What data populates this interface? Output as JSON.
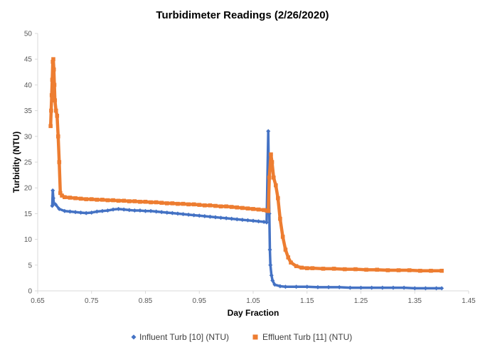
{
  "chart_data": {
    "type": "scatter",
    "title": "Turbidimeter Readings (2/26/2020)",
    "xlabel": "Day Fraction",
    "ylabel": "Turbidity (NTU)",
    "xlim": [
      0.65,
      1.45
    ],
    "ylim": [
      0,
      50
    ],
    "x_ticks": [
      "0.65",
      "0.75",
      "0.85",
      "0.95",
      "1.05",
      "1.15",
      "1.25",
      "1.35",
      "1.45"
    ],
    "y_ticks": [
      "0",
      "5",
      "10",
      "15",
      "20",
      "25",
      "30",
      "35",
      "40",
      "45",
      "50"
    ],
    "grid": false,
    "legend_position": "bottom",
    "series": [
      {
        "name": "Influent Turb [10] (NTU)",
        "marker": "diamond",
        "color": "#4472C4",
        "points": [
          [
            0.677,
            16.5
          ],
          [
            0.678,
            19.5
          ],
          [
            0.679,
            18.0
          ],
          [
            0.68,
            17.0
          ],
          [
            0.683,
            16.8
          ],
          [
            0.69,
            15.9
          ],
          [
            0.7,
            15.5
          ],
          [
            0.71,
            15.4
          ],
          [
            0.72,
            15.3
          ],
          [
            0.73,
            15.2
          ],
          [
            0.74,
            15.1
          ],
          [
            0.75,
            15.2
          ],
          [
            0.76,
            15.4
          ],
          [
            0.77,
            15.5
          ],
          [
            0.78,
            15.6
          ],
          [
            0.79,
            15.8
          ],
          [
            0.8,
            15.9
          ],
          [
            0.81,
            15.8
          ],
          [
            0.82,
            15.7
          ],
          [
            0.83,
            15.6
          ],
          [
            0.84,
            15.6
          ],
          [
            0.85,
            15.5
          ],
          [
            0.86,
            15.5
          ],
          [
            0.87,
            15.4
          ],
          [
            0.88,
            15.3
          ],
          [
            0.89,
            15.2
          ],
          [
            0.9,
            15.1
          ],
          [
            0.91,
            15.0
          ],
          [
            0.92,
            14.9
          ],
          [
            0.93,
            14.8
          ],
          [
            0.94,
            14.7
          ],
          [
            0.95,
            14.6
          ],
          [
            0.96,
            14.5
          ],
          [
            0.97,
            14.4
          ],
          [
            0.98,
            14.3
          ],
          [
            0.99,
            14.2
          ],
          [
            1.0,
            14.1
          ],
          [
            1.01,
            14.0
          ],
          [
            1.02,
            13.9
          ],
          [
            1.03,
            13.8
          ],
          [
            1.04,
            13.7
          ],
          [
            1.05,
            13.6
          ],
          [
            1.06,
            13.5
          ],
          [
            1.07,
            13.4
          ],
          [
            1.075,
            13.3
          ],
          [
            1.078,
            31.0
          ],
          [
            1.079,
            23.0
          ],
          [
            1.08,
            15.0
          ],
          [
            1.081,
            8.0
          ],
          [
            1.082,
            5.0
          ],
          [
            1.084,
            3.0
          ],
          [
            1.086,
            2.0
          ],
          [
            1.09,
            1.2
          ],
          [
            1.1,
            0.9
          ],
          [
            1.11,
            0.8
          ],
          [
            1.13,
            0.8
          ],
          [
            1.15,
            0.8
          ],
          [
            1.17,
            0.7
          ],
          [
            1.19,
            0.7
          ],
          [
            1.21,
            0.7
          ],
          [
            1.23,
            0.6
          ],
          [
            1.25,
            0.6
          ],
          [
            1.27,
            0.6
          ],
          [
            1.29,
            0.6
          ],
          [
            1.31,
            0.6
          ],
          [
            1.33,
            0.6
          ],
          [
            1.35,
            0.5
          ],
          [
            1.37,
            0.5
          ],
          [
            1.39,
            0.5
          ],
          [
            1.4,
            0.5
          ]
        ]
      },
      {
        "name": "Effluent Turb [11] (NTU)",
        "marker": "square",
        "color": "#ED7D31",
        "points": [
          [
            0.674,
            32.0
          ],
          [
            0.675,
            35.0
          ],
          [
            0.676,
            38.0
          ],
          [
            0.677,
            41.0
          ],
          [
            0.678,
            44.5
          ],
          [
            0.679,
            45.0
          ],
          [
            0.68,
            43.0
          ],
          [
            0.681,
            40.0
          ],
          [
            0.682,
            37.0
          ],
          [
            0.684,
            35.0
          ],
          [
            0.686,
            34.0
          ],
          [
            0.688,
            30.0
          ],
          [
            0.69,
            25.0
          ],
          [
            0.692,
            19.0
          ],
          [
            0.695,
            18.5
          ],
          [
            0.7,
            18.2
          ],
          [
            0.71,
            18.1
          ],
          [
            0.72,
            18.0
          ],
          [
            0.73,
            17.9
          ],
          [
            0.74,
            17.8
          ],
          [
            0.75,
            17.8
          ],
          [
            0.76,
            17.7
          ],
          [
            0.77,
            17.7
          ],
          [
            0.78,
            17.6
          ],
          [
            0.79,
            17.6
          ],
          [
            0.8,
            17.5
          ],
          [
            0.81,
            17.5
          ],
          [
            0.82,
            17.4
          ],
          [
            0.83,
            17.4
          ],
          [
            0.84,
            17.3
          ],
          [
            0.85,
            17.3
          ],
          [
            0.86,
            17.2
          ],
          [
            0.87,
            17.2
          ],
          [
            0.88,
            17.1
          ],
          [
            0.89,
            17.0
          ],
          [
            0.9,
            17.0
          ],
          [
            0.91,
            16.9
          ],
          [
            0.92,
            16.9
          ],
          [
            0.93,
            16.8
          ],
          [
            0.94,
            16.8
          ],
          [
            0.95,
            16.7
          ],
          [
            0.96,
            16.6
          ],
          [
            0.97,
            16.6
          ],
          [
            0.98,
            16.5
          ],
          [
            0.99,
            16.4
          ],
          [
            1.0,
            16.4
          ],
          [
            1.01,
            16.3
          ],
          [
            1.02,
            16.2
          ],
          [
            1.03,
            16.1
          ],
          [
            1.04,
            16.0
          ],
          [
            1.05,
            15.9
          ],
          [
            1.06,
            15.8
          ],
          [
            1.07,
            15.7
          ],
          [
            1.075,
            15.6
          ],
          [
            1.078,
            15.5
          ],
          [
            1.08,
            22.0
          ],
          [
            1.083,
            26.5
          ],
          [
            1.085,
            25.0
          ],
          [
            1.088,
            22.0
          ],
          [
            1.092,
            20.5
          ],
          [
            1.096,
            18.0
          ],
          [
            1.1,
            14.0
          ],
          [
            1.105,
            10.5
          ],
          [
            1.11,
            8.0
          ],
          [
            1.115,
            6.5
          ],
          [
            1.12,
            5.5
          ],
          [
            1.13,
            4.8
          ],
          [
            1.14,
            4.5
          ],
          [
            1.15,
            4.4
          ],
          [
            1.16,
            4.4
          ],
          [
            1.18,
            4.3
          ],
          [
            1.2,
            4.3
          ],
          [
            1.22,
            4.2
          ],
          [
            1.24,
            4.2
          ],
          [
            1.26,
            4.1
          ],
          [
            1.28,
            4.1
          ],
          [
            1.3,
            4.0
          ],
          [
            1.32,
            4.0
          ],
          [
            1.34,
            4.0
          ],
          [
            1.36,
            3.9
          ],
          [
            1.38,
            3.9
          ],
          [
            1.4,
            3.9
          ]
        ]
      }
    ]
  }
}
